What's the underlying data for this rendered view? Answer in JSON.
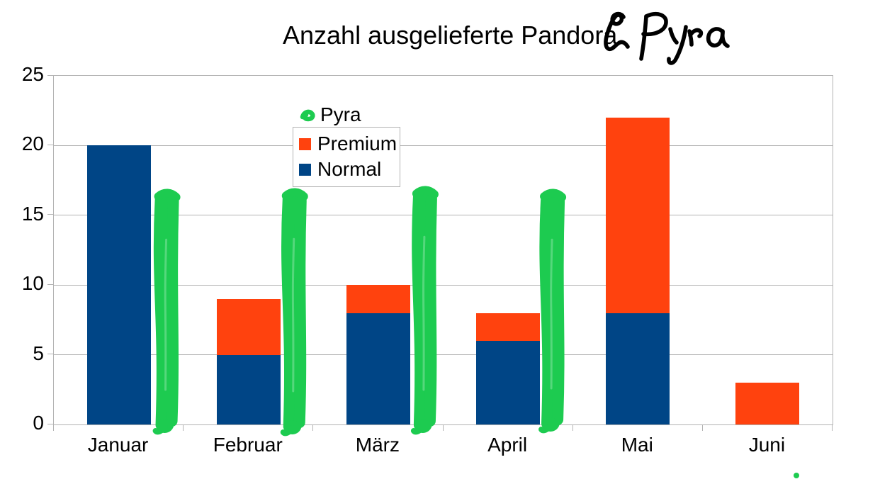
{
  "title": {
    "printed": "Anzahl ausgelieferte Pandora",
    "handwritten_annotation": "& Pyra"
  },
  "legend": {
    "position": "inside plot, upper left-center",
    "items": [
      {
        "label": "Pyra",
        "marker": "green-scribble-icon",
        "color": "#1dcb50",
        "inside_box": false
      },
      {
        "label": "Premium",
        "marker": "square",
        "color": "#ff420e",
        "inside_box": true
      },
      {
        "label": "Normal",
        "marker": "square",
        "color": "#004586",
        "inside_box": true
      }
    ]
  },
  "chart_data": {
    "type": "bar",
    "stacked": true,
    "title": "Anzahl ausgelieferte Pandora & Pyra",
    "categories": [
      "Januar",
      "Februar",
      "März",
      "April",
      "Mai",
      "Juni"
    ],
    "series": [
      {
        "name": "Normal",
        "color": "#004586",
        "values": [
          20,
          5,
          8,
          6,
          8,
          0
        ]
      },
      {
        "name": "Premium",
        "color": "#ff420e",
        "values": [
          0,
          4,
          2,
          2,
          14,
          3
        ]
      }
    ],
    "totals": [
      20,
      9,
      10,
      8,
      22,
      3
    ],
    "hand_drawn_annotation": {
      "name": "Pyra",
      "color": "#1dcb50",
      "style": "thick vertical marker strokes drawn beside the bars, baseline to ~16.5",
      "categories": [
        "Januar",
        "Februar",
        "März",
        "April"
      ],
      "approx_value": 16.5,
      "extra_mark": "small green dot below the Juni label, outside the plot"
    },
    "xlabel": "",
    "ylabel": "",
    "ylim": [
      0,
      25
    ],
    "yticks": [
      0,
      5,
      10,
      15,
      20,
      25
    ],
    "grid": true,
    "legend_position": "upper-center-left"
  },
  "colors": {
    "normal_blue": "#004586",
    "premium_orange": "#ff420e",
    "pyra_green": "#1dcb50",
    "grid_gray": "#b3b3b3",
    "text": "#000000",
    "background": "#ffffff"
  }
}
